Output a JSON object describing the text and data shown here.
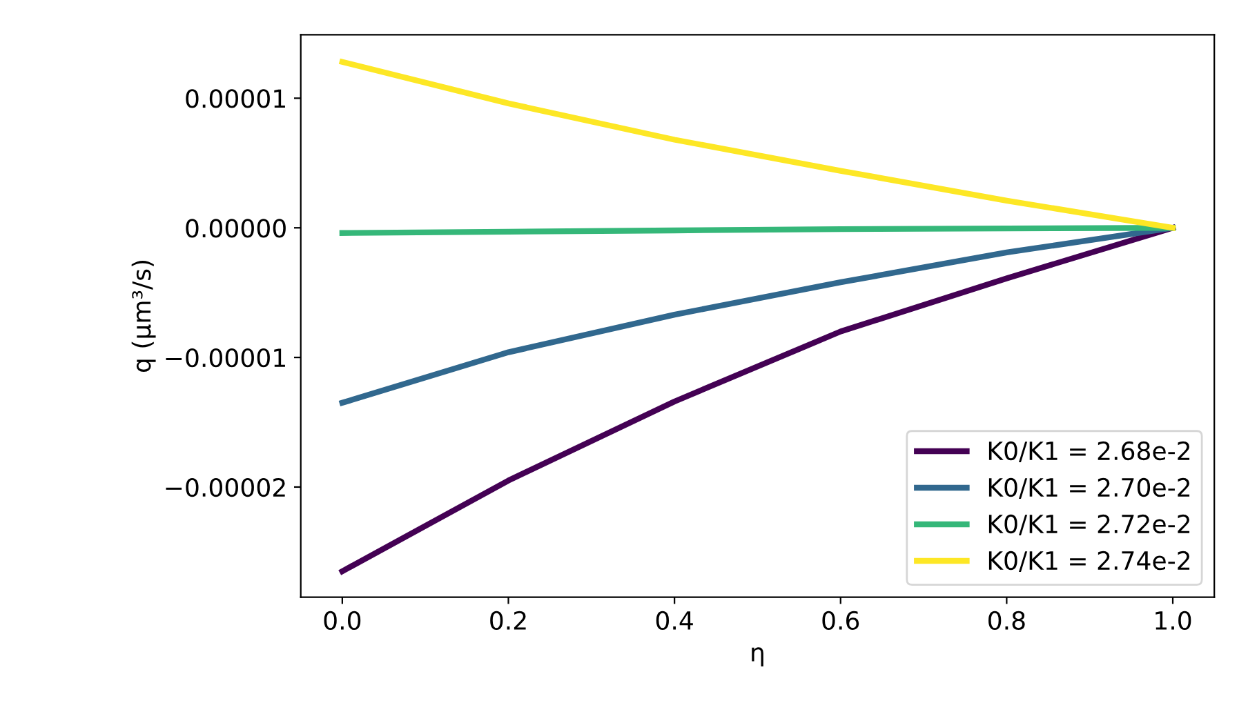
{
  "chart_data": {
    "type": "line",
    "xlabel": "η",
    "ylabel": "q (μm³/s)",
    "xlim": [
      -0.05,
      1.05
    ],
    "xticks": [
      {
        "value": 0,
        "label": "0.0"
      },
      {
        "value": 0.2,
        "label": "0.2"
      },
      {
        "value": 0.4,
        "label": "0.4"
      },
      {
        "value": 0.6,
        "label": "0.6"
      },
      {
        "value": 0.8,
        "label": "0.8"
      },
      {
        "value": 1,
        "label": "1.0"
      }
    ],
    "ylim": [
      -2.85e-05,
      1.49e-05
    ],
    "yticks": [
      {
        "value": 1e-05,
        "label": "0.00001"
      },
      {
        "value": 0,
        "label": "0.00000"
      },
      {
        "value": -1e-05,
        "label": "−0.00001"
      },
      {
        "value": -2e-05,
        "label": "−0.00002"
      }
    ],
    "x": [
      0,
      0.2,
      0.4,
      0.6,
      0.8,
      1.0
    ],
    "series": [
      {
        "name": "K0/K1 = 2.68e-2",
        "color": "#440154",
        "values": [
          -2.65e-05,
          -1.95e-05,
          -1.34e-05,
          -8e-06,
          -3.9e-06,
          0
        ]
      },
      {
        "name": "K0/K1 = 2.70e-2",
        "color": "#31688e",
        "values": [
          -1.35e-05,
          -9.6e-06,
          -6.7e-06,
          -4.2e-06,
          -1.9e-06,
          0
        ]
      },
      {
        "name": "K0/K1 = 2.72e-2",
        "color": "#35b779",
        "values": [
          -4e-07,
          -3e-07,
          -2e-07,
          -1e-07,
          -5e-08,
          0
        ]
      },
      {
        "name": "K0/K1 = 2.74e-2",
        "color": "#fde725",
        "values": [
          1.28e-05,
          9.6e-06,
          6.8e-06,
          4.4e-06,
          2.1e-06,
          0
        ]
      }
    ],
    "legend": "bottom right",
    "grid": false,
    "line_style": "solid",
    "marker": "none"
  }
}
